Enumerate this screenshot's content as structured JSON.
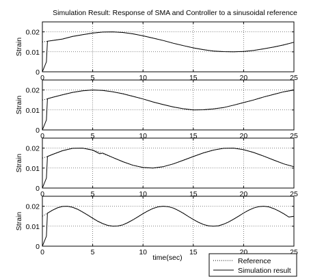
{
  "chart_data": {
    "type": "line",
    "title": "Simulation Result: Response of SMA and Controller to a sinusoidal reference",
    "xlabel": "time(sec)",
    "ylabel": "Strain",
    "xlim": [
      0,
      25
    ],
    "xticks": [
      0,
      5,
      10,
      15,
      20,
      25
    ],
    "ylim": [
      0,
      0.025
    ],
    "yticks": [
      0,
      0.01,
      0.02
    ],
    "ytick_labels": [
      "0",
      "0.01",
      "0.02"
    ],
    "grid": true,
    "legend": {
      "placement": "bottom-right, below last subplot",
      "entries": [
        {
          "name": "Reference",
          "style": "dotted"
        },
        {
          "name": "Simulation result",
          "style": "solid"
        }
      ]
    },
    "subplots": [
      {
        "x": [
          0,
          0.4,
          0.5,
          1,
          2,
          3,
          4,
          5,
          6,
          7,
          8,
          9,
          10,
          11,
          12,
          13,
          14,
          15,
          16,
          17,
          18,
          19,
          20,
          21,
          22,
          23,
          24,
          25
        ],
        "reference": [
          0.015,
          0.0152,
          0.0153,
          0.0157,
          0.0164,
          0.0177,
          0.0186,
          0.0194,
          0.0199,
          0.02,
          0.0197,
          0.019,
          0.018,
          0.0169,
          0.0157,
          0.0143,
          0.0131,
          0.012,
          0.0111,
          0.0104,
          0.0101,
          0.01,
          0.0102,
          0.0107,
          0.0115,
          0.0124,
          0.0135,
          0.0148
        ],
        "simulation": [
          0,
          0.005,
          0.0153,
          0.0157,
          0.0164,
          0.0177,
          0.0186,
          0.0194,
          0.0199,
          0.02,
          0.0197,
          0.019,
          0.018,
          0.0169,
          0.0157,
          0.0143,
          0.0131,
          0.012,
          0.0111,
          0.0104,
          0.0101,
          0.01,
          0.0102,
          0.0107,
          0.0115,
          0.0124,
          0.0135,
          0.0148
        ]
      },
      {
        "x": [
          0,
          0.4,
          0.5,
          1,
          2,
          3,
          4,
          5,
          6,
          7,
          8,
          9,
          10,
          11,
          12,
          13,
          14,
          15,
          16,
          17,
          18,
          19,
          20,
          21,
          22,
          23,
          24,
          25
        ],
        "reference": [
          0.015,
          0.0154,
          0.0156,
          0.0163,
          0.0176,
          0.0188,
          0.0196,
          0.02,
          0.0198,
          0.0191,
          0.0181,
          0.0168,
          0.0155,
          0.014,
          0.0127,
          0.0115,
          0.0106,
          0.01,
          0.0101,
          0.0105,
          0.0112,
          0.0124,
          0.0137,
          0.015,
          0.0165,
          0.0178,
          0.0191,
          0.02
        ],
        "simulation": [
          0,
          0.005,
          0.0156,
          0.0163,
          0.0176,
          0.0188,
          0.0196,
          0.02,
          0.0198,
          0.0191,
          0.0181,
          0.0168,
          0.0155,
          0.014,
          0.0127,
          0.0115,
          0.0106,
          0.01,
          0.0101,
          0.0105,
          0.0112,
          0.0124,
          0.0137,
          0.015,
          0.0165,
          0.0178,
          0.0191,
          0.02
        ]
      },
      {
        "x": [
          0,
          0.4,
          0.5,
          1,
          2,
          3,
          4,
          5,
          5.7,
          6,
          7,
          8,
          9,
          10,
          11,
          12,
          13,
          14,
          15,
          16,
          17,
          18,
          19,
          20,
          21,
          22,
          23,
          24,
          25
        ],
        "reference": [
          0.015,
          0.0156,
          0.0158,
          0.0168,
          0.0187,
          0.0199,
          0.02,
          0.019,
          0.018,
          0.0173,
          0.0153,
          0.0132,
          0.0114,
          0.0103,
          0.01,
          0.0107,
          0.0121,
          0.0139,
          0.0158,
          0.0176,
          0.019,
          0.0199,
          0.02,
          0.0192,
          0.0178,
          0.016,
          0.014,
          0.0121,
          0.0107
        ],
        "simulation": [
          0,
          0.005,
          0.0158,
          0.0168,
          0.0187,
          0.0199,
          0.02,
          0.019,
          0.0172,
          0.0175,
          0.0153,
          0.0132,
          0.0114,
          0.0103,
          0.01,
          0.0107,
          0.0121,
          0.0139,
          0.0158,
          0.0176,
          0.019,
          0.0199,
          0.02,
          0.0192,
          0.0178,
          0.016,
          0.014,
          0.0121,
          0.0107
        ]
      },
      {
        "x": [
          0,
          0.4,
          0.5,
          1,
          1.5,
          2,
          2.5,
          3,
          3.5,
          4,
          4.5,
          5,
          5.5,
          6,
          6.5,
          7,
          7.5,
          8,
          8.5,
          9,
          9.5,
          10,
          10.5,
          11,
          11.5,
          12,
          12.5,
          13,
          13.5,
          14,
          14.5,
          15,
          15.5,
          16,
          16.5,
          17,
          17.5,
          18,
          18.5,
          19,
          19.5,
          20,
          20.5,
          21,
          21.5,
          22,
          22.5,
          23,
          23.5,
          24,
          24.5,
          25
        ],
        "reference": [
          0.015,
          0.0162,
          0.0165,
          0.018,
          0.0192,
          0.0199,
          0.02,
          0.0195,
          0.0185,
          0.0171,
          0.0156,
          0.014,
          0.0125,
          0.0113,
          0.0104,
          0.01,
          0.0101,
          0.0107,
          0.0118,
          0.0132,
          0.0147,
          0.0163,
          0.0177,
          0.0189,
          0.0197,
          0.02,
          0.0198,
          0.0191,
          0.0179,
          0.0165,
          0.0149,
          0.0134,
          0.012,
          0.0109,
          0.0102,
          0.01,
          0.0102,
          0.011,
          0.0121,
          0.0135,
          0.015,
          0.0166,
          0.018,
          0.0191,
          0.0198,
          0.02,
          0.0197,
          0.0188,
          0.0176,
          0.0162,
          0.0146,
          0.015
        ],
        "simulation": [
          0,
          0.005,
          0.0165,
          0.018,
          0.0192,
          0.0199,
          0.02,
          0.0195,
          0.0185,
          0.0171,
          0.0156,
          0.014,
          0.0125,
          0.0113,
          0.0104,
          0.01,
          0.0101,
          0.0107,
          0.0118,
          0.0132,
          0.0147,
          0.0163,
          0.0177,
          0.0189,
          0.0197,
          0.02,
          0.0198,
          0.0191,
          0.0179,
          0.0165,
          0.0149,
          0.0134,
          0.012,
          0.0109,
          0.0102,
          0.01,
          0.0102,
          0.011,
          0.0121,
          0.0135,
          0.015,
          0.0166,
          0.018,
          0.0191,
          0.0198,
          0.02,
          0.0197,
          0.0188,
          0.0176,
          0.0162,
          0.0146,
          0.015
        ]
      }
    ]
  }
}
